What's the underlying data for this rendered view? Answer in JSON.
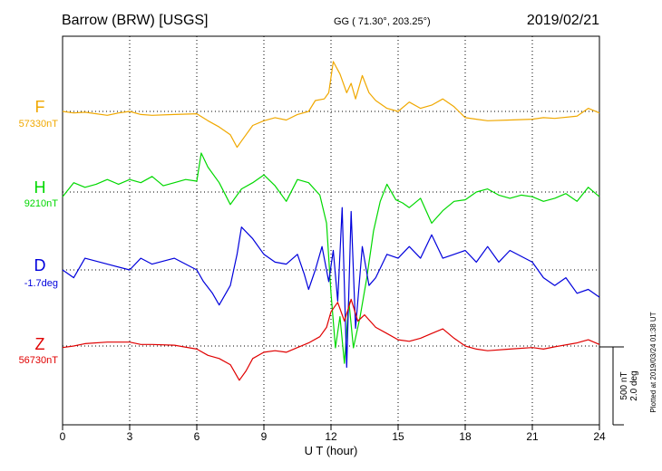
{
  "header": {
    "station": "Barrow (BRW)  [USGS]",
    "coords": "GG ( 71.30°, 203.25°)",
    "date": "2019/02/21"
  },
  "footer": {
    "plotted": "Plotted at 2019/03/24 01:38 UT"
  },
  "scale": {
    "nt": "500 nT",
    "deg": "2.0 deg"
  },
  "chart_data": {
    "type": "line",
    "xlabel": "U T (hour)",
    "xlim": [
      0,
      24
    ],
    "xticks": [
      "0",
      "3",
      "6",
      "9",
      "12",
      "15",
      "18",
      "21",
      "24"
    ],
    "grid": true,
    "series": [
      {
        "name": "F",
        "baseline_label": "57330nT",
        "color": "#f0a800",
        "baseline": 57330,
        "unit": "nT",
        "points": [
          [
            0,
            0
          ],
          [
            0.5,
            -10
          ],
          [
            1,
            -5
          ],
          [
            2,
            -25
          ],
          [
            2.5,
            -10
          ],
          [
            3,
            0
          ],
          [
            3.5,
            -20
          ],
          [
            4,
            -25
          ],
          [
            5,
            -20
          ],
          [
            6,
            -15
          ],
          [
            6.5,
            -60
          ],
          [
            7,
            -100
          ],
          [
            7.5,
            -150
          ],
          [
            7.8,
            -230
          ],
          [
            8,
            -190
          ],
          [
            8.5,
            -90
          ],
          [
            9,
            -60
          ],
          [
            9.5,
            -40
          ],
          [
            10,
            -55
          ],
          [
            10.5,
            -20
          ],
          [
            11,
            0
          ],
          [
            11.3,
            70
          ],
          [
            11.7,
            80
          ],
          [
            11.9,
            120
          ],
          [
            12.1,
            320
          ],
          [
            12.4,
            240
          ],
          [
            12.7,
            120
          ],
          [
            12.9,
            180
          ],
          [
            13.1,
            80
          ],
          [
            13.4,
            230
          ],
          [
            13.7,
            120
          ],
          [
            14,
            70
          ],
          [
            14.5,
            20
          ],
          [
            15,
            0
          ],
          [
            15.5,
            60
          ],
          [
            16,
            20
          ],
          [
            16.5,
            40
          ],
          [
            17,
            80
          ],
          [
            17.5,
            30
          ],
          [
            18,
            -40
          ],
          [
            18.5,
            -50
          ],
          [
            19,
            -60
          ],
          [
            20,
            -55
          ],
          [
            21,
            -50
          ],
          [
            21.5,
            -40
          ],
          [
            22,
            -45
          ],
          [
            23,
            -30
          ],
          [
            23.5,
            20
          ],
          [
            24,
            -10
          ]
        ]
      },
      {
        "name": "H",
        "baseline_label": "9210nT",
        "color": "#00d800",
        "baseline": 9210,
        "unit": "nT",
        "points": [
          [
            0,
            -30
          ],
          [
            0.5,
            60
          ],
          [
            1,
            30
          ],
          [
            1.5,
            50
          ],
          [
            2,
            80
          ],
          [
            2.5,
            50
          ],
          [
            3,
            80
          ],
          [
            3.5,
            60
          ],
          [
            4,
            100
          ],
          [
            4.5,
            40
          ],
          [
            5,
            60
          ],
          [
            5.5,
            80
          ],
          [
            6,
            70
          ],
          [
            6.2,
            250
          ],
          [
            6.5,
            160
          ],
          [
            7,
            60
          ],
          [
            7.5,
            -80
          ],
          [
            8,
            20
          ],
          [
            8.5,
            60
          ],
          [
            9,
            110
          ],
          [
            9.5,
            40
          ],
          [
            10,
            -60
          ],
          [
            10.5,
            80
          ],
          [
            11,
            60
          ],
          [
            11.5,
            -20
          ],
          [
            11.8,
            -200
          ],
          [
            12,
            -650
          ],
          [
            12.2,
            -1000
          ],
          [
            12.4,
            -800
          ],
          [
            12.6,
            -1100
          ],
          [
            12.8,
            -700
          ],
          [
            13,
            -1000
          ],
          [
            13.3,
            -800
          ],
          [
            13.6,
            -550
          ],
          [
            13.9,
            -250
          ],
          [
            14.2,
            -60
          ],
          [
            14.5,
            50
          ],
          [
            14.9,
            -50
          ],
          [
            15.2,
            -70
          ],
          [
            15.5,
            -100
          ],
          [
            16,
            -40
          ],
          [
            16.5,
            -200
          ],
          [
            17,
            -120
          ],
          [
            17.5,
            -60
          ],
          [
            18,
            -50
          ],
          [
            18.5,
            0
          ],
          [
            19,
            20
          ],
          [
            19.5,
            -20
          ],
          [
            20,
            -40
          ],
          [
            20.5,
            -20
          ],
          [
            21,
            -30
          ],
          [
            21.5,
            -60
          ],
          [
            22,
            -40
          ],
          [
            22.5,
            -10
          ],
          [
            23,
            -60
          ],
          [
            23.5,
            30
          ],
          [
            24,
            -30
          ]
        ]
      },
      {
        "name": "D",
        "baseline_label": "-1.7deg",
        "color": "#0000dc",
        "baseline": -1.7,
        "unit": "deg",
        "points": [
          [
            0,
            0
          ],
          [
            0.5,
            -0.2
          ],
          [
            1,
            0.3
          ],
          [
            2,
            0.15
          ],
          [
            3,
            0
          ],
          [
            3.5,
            0.3
          ],
          [
            4,
            0.15
          ],
          [
            5,
            0.3
          ],
          [
            6,
            0
          ],
          [
            6.3,
            -0.3
          ],
          [
            6.7,
            -0.6
          ],
          [
            7,
            -0.9
          ],
          [
            7.5,
            -0.4
          ],
          [
            7.8,
            0.4
          ],
          [
            8,
            1.1
          ],
          [
            8.5,
            0.8
          ],
          [
            9,
            0.4
          ],
          [
            9.5,
            0.2
          ],
          [
            10,
            0.15
          ],
          [
            10.5,
            0.4
          ],
          [
            10.8,
            -0.1
          ],
          [
            11,
            -0.5
          ],
          [
            11.3,
            0
          ],
          [
            11.6,
            0.6
          ],
          [
            11.9,
            -0.3
          ],
          [
            12.1,
            0.5
          ],
          [
            12.3,
            -0.8
          ],
          [
            12.5,
            1.6
          ],
          [
            12.7,
            -2.5
          ],
          [
            12.9,
            1.5
          ],
          [
            13.1,
            -1.5
          ],
          [
            13.4,
            0.6
          ],
          [
            13.7,
            -0.4
          ],
          [
            14,
            -0.2
          ],
          [
            14.5,
            0.4
          ],
          [
            15,
            0.3
          ],
          [
            15.5,
            0.6
          ],
          [
            16,
            0.3
          ],
          [
            16.5,
            0.9
          ],
          [
            17,
            0.3
          ],
          [
            17.5,
            0.4
          ],
          [
            18,
            0.5
          ],
          [
            18.5,
            0.2
          ],
          [
            19,
            0.6
          ],
          [
            19.5,
            0.2
          ],
          [
            20,
            0.5
          ],
          [
            21,
            0.2
          ],
          [
            21.5,
            -0.2
          ],
          [
            22,
            -0.4
          ],
          [
            22.5,
            -0.2
          ],
          [
            23,
            -0.6
          ],
          [
            23.5,
            -0.5
          ],
          [
            24,
            -0.7
          ]
        ]
      },
      {
        "name": "Z",
        "baseline_label": "56730nT",
        "color": "#e00000",
        "baseline": 56730,
        "unit": "nT",
        "points": [
          [
            0,
            -10
          ],
          [
            0.5,
            0
          ],
          [
            1,
            15
          ],
          [
            2,
            25
          ],
          [
            3,
            25
          ],
          [
            3.5,
            10
          ],
          [
            4,
            10
          ],
          [
            5,
            5
          ],
          [
            6,
            -20
          ],
          [
            6.5,
            -60
          ],
          [
            7,
            -80
          ],
          [
            7.5,
            -120
          ],
          [
            7.9,
            -220
          ],
          [
            8.2,
            -160
          ],
          [
            8.5,
            -80
          ],
          [
            9,
            -40
          ],
          [
            9.5,
            -30
          ],
          [
            10,
            -40
          ],
          [
            10.5,
            -10
          ],
          [
            11,
            20
          ],
          [
            11.5,
            60
          ],
          [
            11.8,
            120
          ],
          [
            12,
            220
          ],
          [
            12.3,
            280
          ],
          [
            12.6,
            160
          ],
          [
            12.9,
            300
          ],
          [
            13.2,
            160
          ],
          [
            13.5,
            200
          ],
          [
            14,
            120
          ],
          [
            14.5,
            80
          ],
          [
            15,
            40
          ],
          [
            15.5,
            30
          ],
          [
            16,
            50
          ],
          [
            16.5,
            80
          ],
          [
            17,
            110
          ],
          [
            17.5,
            50
          ],
          [
            18,
            0
          ],
          [
            18.5,
            -20
          ],
          [
            19,
            -30
          ],
          [
            20,
            -20
          ],
          [
            21,
            -10
          ],
          [
            21.5,
            -20
          ],
          [
            22,
            -5
          ],
          [
            23,
            20
          ],
          [
            23.5,
            40
          ],
          [
            24,
            10
          ]
        ]
      }
    ]
  }
}
